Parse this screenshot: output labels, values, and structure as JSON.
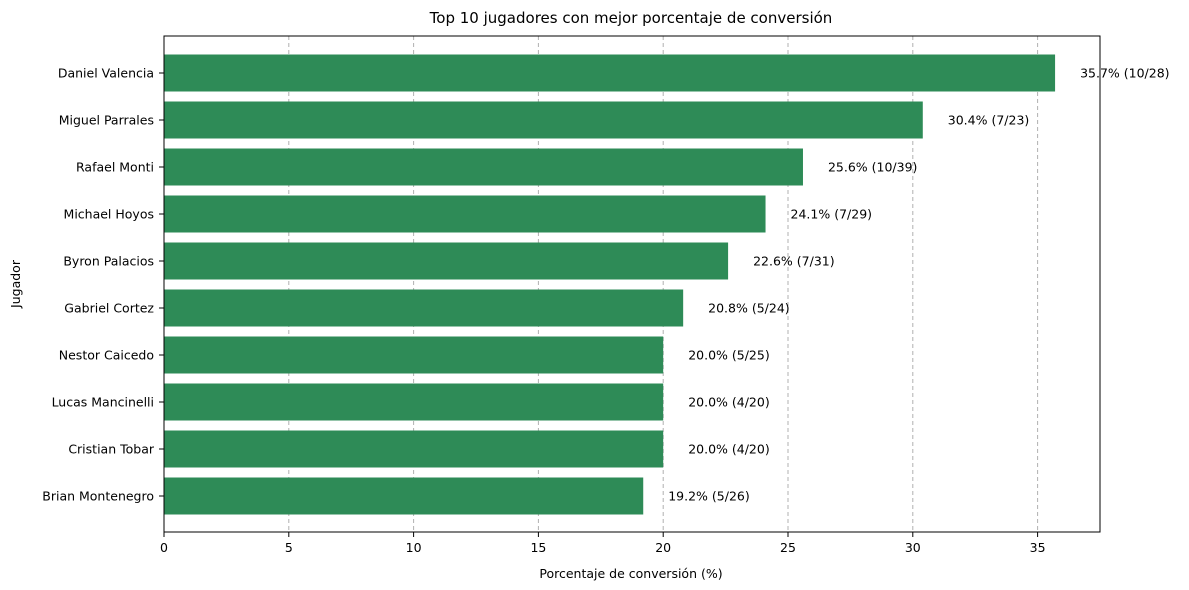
{
  "chart_data": {
    "type": "bar",
    "orientation": "horizontal",
    "title": "Top 10 jugadores con mejor porcentaje de conversión",
    "xlabel": "Porcentaje de conversión (%)",
    "ylabel": "Jugador",
    "xlim": [
      0,
      37.5
    ],
    "xticks": [
      0,
      5,
      10,
      15,
      20,
      25,
      30,
      35
    ],
    "grid": "x-dashed",
    "bar_color": "#2e8b57",
    "categories": [
      "Daniel Valencia",
      "Miguel Parrales",
      "Rafael Monti",
      "Michael Hoyos",
      "Byron Palacios",
      "Gabriel Cortez",
      "Nestor Caicedo",
      "Lucas Mancinelli",
      "Cristian Tobar",
      "Brian Montenegro"
    ],
    "values": [
      35.7,
      30.4,
      25.6,
      24.1,
      22.6,
      20.8,
      20.0,
      20.0,
      20.0,
      19.2
    ],
    "data_labels": [
      "35.7% (10/28)",
      "30.4% (7/23)",
      "25.6% (10/39)",
      "24.1% (7/29)",
      "22.6% (7/31)",
      "20.8% (5/24)",
      "20.0% (5/25)",
      "20.0% (4/20)",
      "20.0% (4/20)",
      "19.2% (5/26)"
    ]
  }
}
